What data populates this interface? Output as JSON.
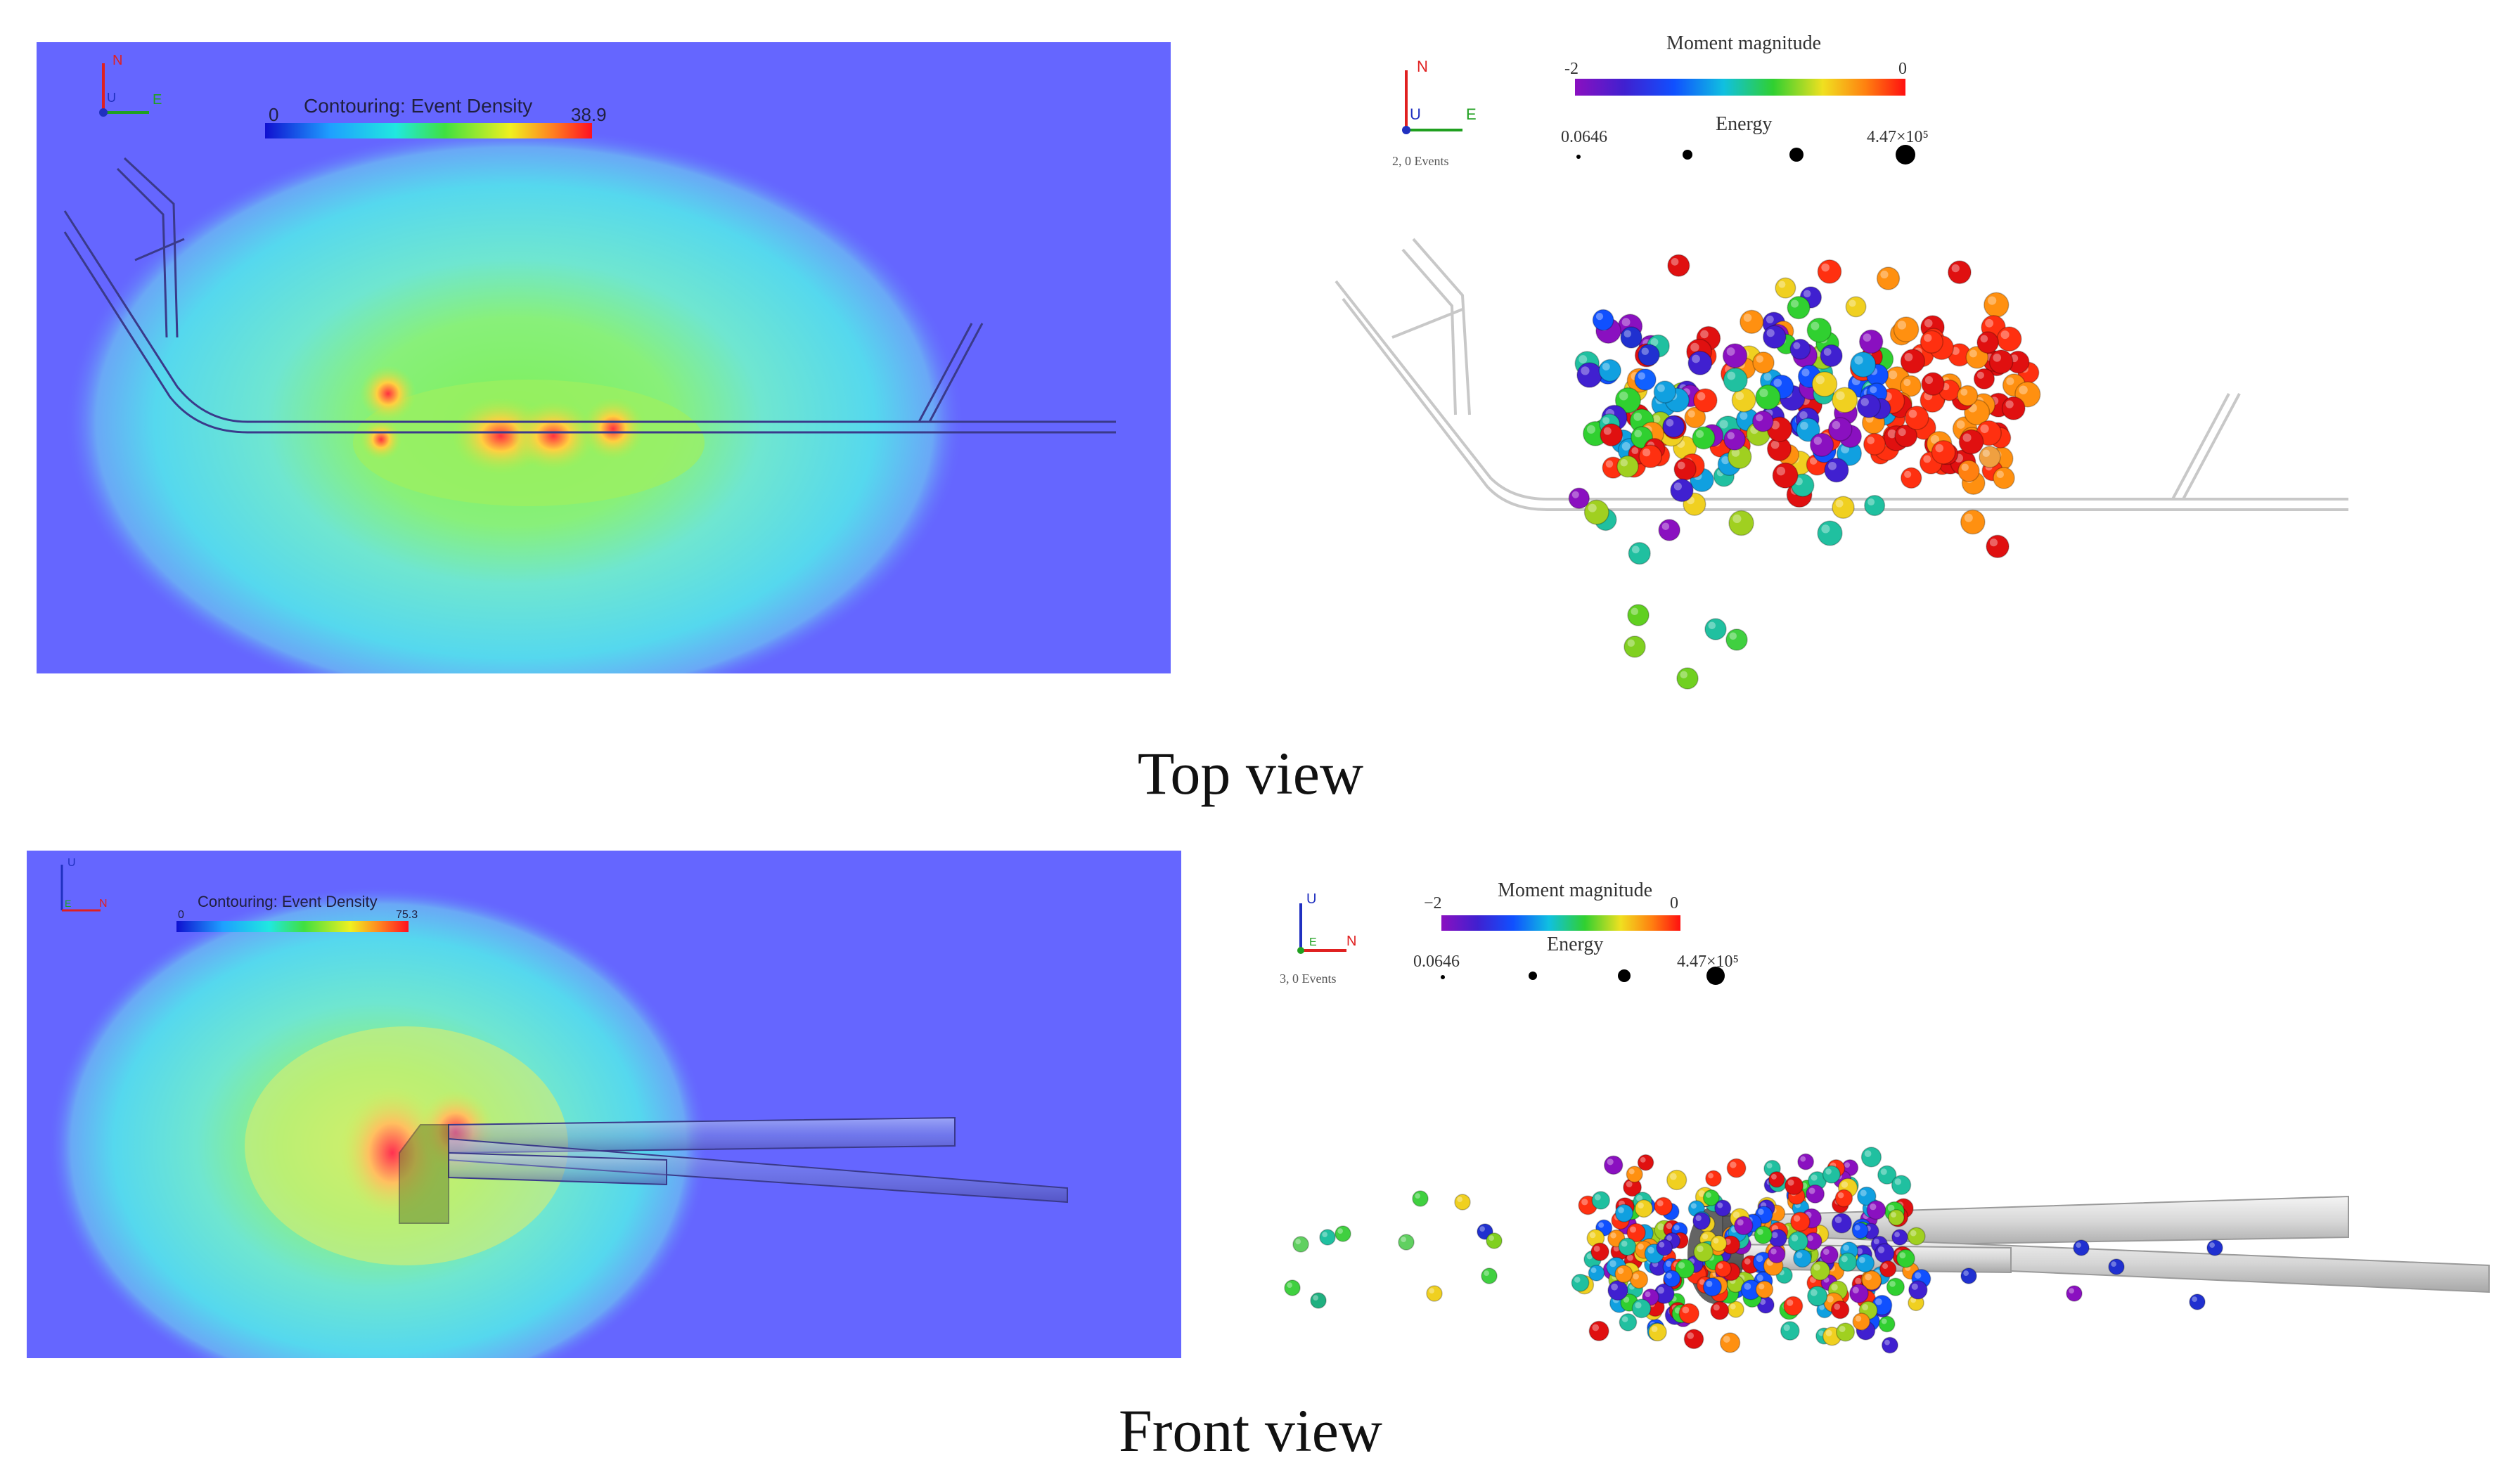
{
  "panels": {
    "top_density": {
      "colorbar_title": "Contouring: Event Density",
      "colorbar_min": "0",
      "colorbar_max": "38.9",
      "axis_n": "N",
      "axis_e": "E",
      "axis_u": "U"
    },
    "top_scatter": {
      "legend_title": "Moment magnitude",
      "mag_min": "-2",
      "mag_max": "0",
      "energy_label": "Energy",
      "energy_min": "0.0646",
      "energy_max": "4.47×10⁵",
      "events_label": "2, 0 Events",
      "axis_n": "N",
      "axis_e": "E",
      "axis_u": "U"
    },
    "front_density": {
      "colorbar_title": "Contouring: Event Density",
      "colorbar_min": "0",
      "colorbar_max": "75.3",
      "axis_u": "U",
      "axis_n": "N",
      "axis_e": "E"
    },
    "front_scatter": {
      "legend_title": "Moment magnitude",
      "mag_min": "−2",
      "mag_max": "0",
      "energy_label": "Energy",
      "energy_min": "0.0646",
      "energy_max": "4.47×10⁵",
      "events_label": "3, 0 Events",
      "axis_u": "U",
      "axis_n": "N",
      "axis_e": "E"
    }
  },
  "captions": {
    "top": "Top view",
    "front": "Front view"
  },
  "colors": {
    "density_bg": "#6566ff",
    "tunnel_dark": "#3a3a8a",
    "tunnel_light": "#d8d8d8",
    "axis_red": "#e02020",
    "axis_green": "#20a020",
    "axis_blue": "#2030c0"
  }
}
